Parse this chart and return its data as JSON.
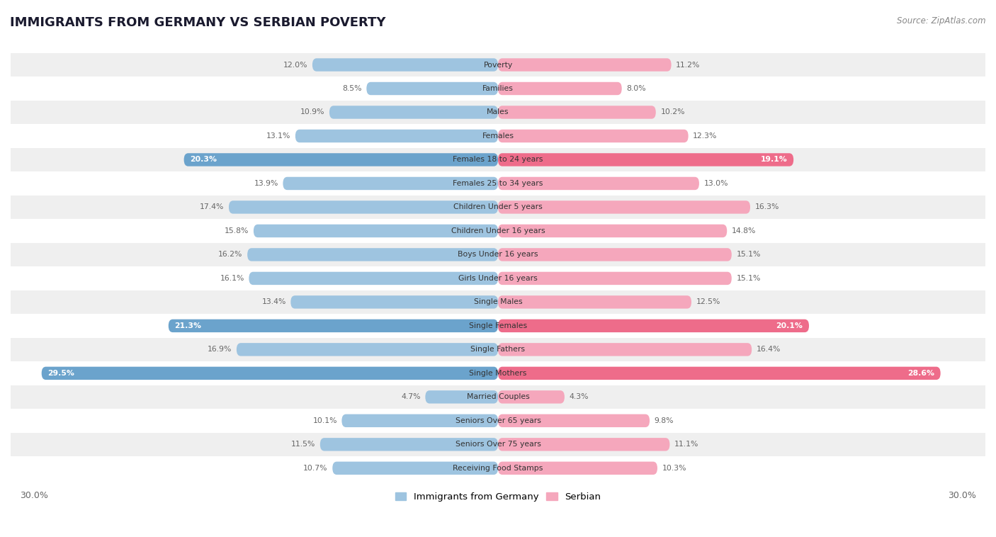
{
  "title": "IMMIGRANTS FROM GERMANY VS SERBIAN POVERTY",
  "source": "Source: ZipAtlas.com",
  "categories": [
    "Poverty",
    "Families",
    "Males",
    "Females",
    "Females 18 to 24 years",
    "Females 25 to 34 years",
    "Children Under 5 years",
    "Children Under 16 years",
    "Boys Under 16 years",
    "Girls Under 16 years",
    "Single Males",
    "Single Females",
    "Single Fathers",
    "Single Mothers",
    "Married Couples",
    "Seniors Over 65 years",
    "Seniors Over 75 years",
    "Receiving Food Stamps"
  ],
  "germany_values": [
    12.0,
    8.5,
    10.9,
    13.1,
    20.3,
    13.9,
    17.4,
    15.8,
    16.2,
    16.1,
    13.4,
    21.3,
    16.9,
    29.5,
    4.7,
    10.1,
    11.5,
    10.7
  ],
  "serbian_values": [
    11.2,
    8.0,
    10.2,
    12.3,
    19.1,
    13.0,
    16.3,
    14.8,
    15.1,
    15.1,
    12.5,
    20.1,
    16.4,
    28.6,
    4.3,
    9.8,
    11.1,
    10.3
  ],
  "germany_color_normal": "#9ec4e0",
  "germany_color_highlight": "#6ba3cc",
  "serbian_color_normal": "#f5a7bc",
  "serbian_color_highlight": "#ee6c8a",
  "highlight_rows": [
    4,
    11,
    13
  ],
  "axis_limit": 30.0,
  "background_color": "#ffffff",
  "row_bg_light": "#ffffff",
  "row_bg_dark": "#efefef",
  "legend_germany": "Immigrants from Germany",
  "legend_serbian": "Serbian"
}
